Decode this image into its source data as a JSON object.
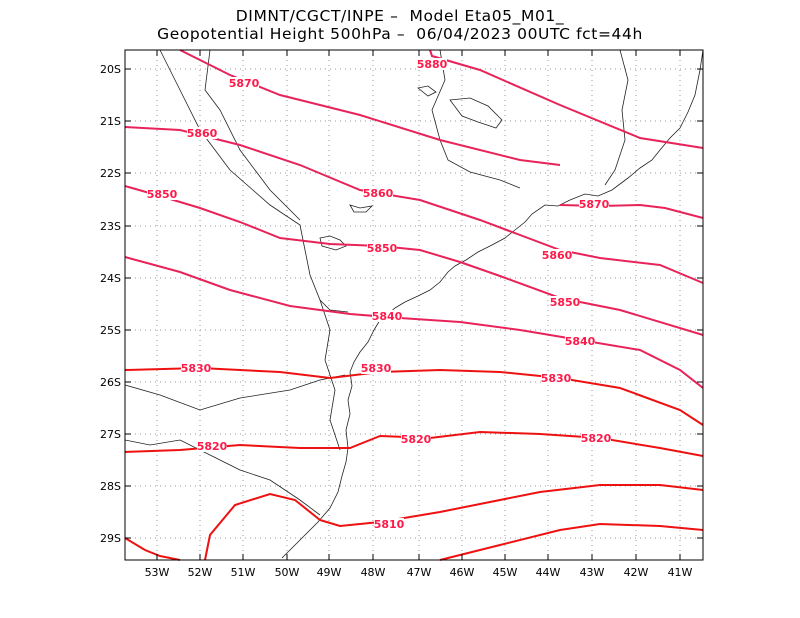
{
  "title": {
    "line1": "DIMNT/CGCT/INPE –  Model Eta05_M01_",
    "line2": "Geopotential Height 500hPa –  06/04/2023 00UTC fct=44h"
  },
  "colors": {
    "contour_light": "#e8235a",
    "contour_dark": "#ee1111",
    "coast": "#222222",
    "grid": "#9a9a9a"
  },
  "axes": {
    "lat_ticks": [
      "20S",
      "21S",
      "22S",
      "23S",
      "24S",
      "25S",
      "26S",
      "27S",
      "28S",
      "29S"
    ],
    "lon_ticks": [
      "53W",
      "52W",
      "51W",
      "50W",
      "49W",
      "48W",
      "47W",
      "46W",
      "45W",
      "44W",
      "43W",
      "42W",
      "41W"
    ]
  },
  "contours": [
    {
      "level": "5880",
      "labels": [
        "5880"
      ]
    },
    {
      "level": "5870",
      "labels": [
        "5870",
        "5870"
      ]
    },
    {
      "level": "5860",
      "labels": [
        "5860",
        "5860",
        "5860"
      ]
    },
    {
      "level": "5850",
      "labels": [
        "5850",
        "5850",
        "5850"
      ]
    },
    {
      "level": "5840",
      "labels": [
        "5840",
        "5840"
      ]
    },
    {
      "level": "5830",
      "labels": [
        "5830",
        "5830",
        "5830"
      ]
    },
    {
      "level": "5820",
      "labels": [
        "5820",
        "5820",
        "5820"
      ]
    },
    {
      "level": "5810",
      "labels": [
        "5810"
      ]
    }
  ]
}
